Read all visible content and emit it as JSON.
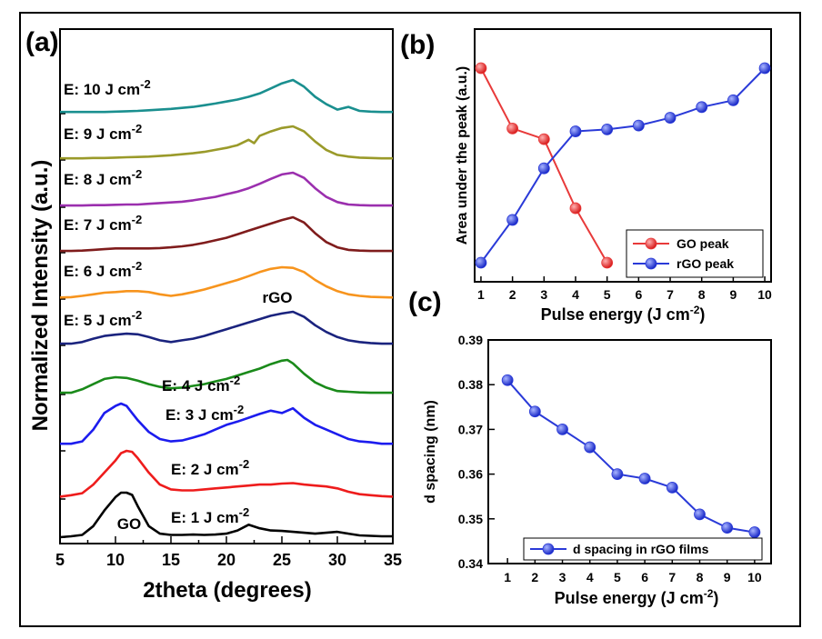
{
  "chart_data": [
    {
      "panel": "(a)",
      "type": "line",
      "xlabel": "2theta (degrees)",
      "ylabel": "Normalized Intensity (a.u.)",
      "xlim": [
        5,
        35
      ],
      "xticks": [
        "5",
        "10",
        "15",
        "20",
        "25",
        "30",
        "35"
      ],
      "annotations": [
        {
          "text": "rGO",
          "x": 26
        },
        {
          "text": "GO",
          "x": 10.5
        }
      ],
      "series": [
        {
          "name": "E: 1 J cm-2",
          "label_main": "E: 1 J cm",
          "label_sup": "-2",
          "color": "#000000",
          "x": [
            5,
            6,
            7,
            8,
            9,
            10,
            10.5,
            11,
            11.5,
            12,
            13,
            14,
            15,
            16,
            17,
            18,
            19,
            20,
            21,
            22,
            23,
            24,
            25,
            26,
            27,
            28,
            29,
            30,
            31,
            32,
            33,
            34,
            35
          ],
          "y": [
            0,
            0.02,
            0.05,
            0.25,
            0.6,
            0.9,
            1.0,
            1.0,
            0.95,
            0.7,
            0.25,
            0.08,
            0.05,
            0.05,
            0.06,
            0.05,
            0.06,
            0.08,
            0.15,
            0.28,
            0.2,
            0.15,
            0.14,
            0.12,
            0.1,
            0.08,
            0.1,
            0.12,
            0.08,
            0.04,
            0.03,
            0.02,
            0.02
          ]
        },
        {
          "name": "E: 2 J cm-2",
          "label_main": "E: 2 J cm",
          "label_sup": "-2",
          "color": "#ee1c1c",
          "x": [
            5,
            6,
            7,
            8,
            9,
            10,
            10.5,
            11,
            11.5,
            12,
            13,
            14,
            15,
            16,
            17,
            18,
            19,
            20,
            21,
            22,
            23,
            24,
            25,
            26,
            27,
            28,
            29,
            30,
            31,
            32,
            33,
            34,
            35
          ],
          "y": [
            0.05,
            0.08,
            0.12,
            0.3,
            0.55,
            0.8,
            0.95,
            1.0,
            0.98,
            0.85,
            0.55,
            0.3,
            0.2,
            0.18,
            0.18,
            0.2,
            0.22,
            0.24,
            0.26,
            0.28,
            0.3,
            0.3,
            0.32,
            0.33,
            0.3,
            0.28,
            0.26,
            0.22,
            0.15,
            0.1,
            0.08,
            0.06,
            0.05
          ]
        },
        {
          "name": "E: 3 J cm-2",
          "label_main": "E: 3 J cm",
          "label_sup": "-2",
          "color": "#1c1cee",
          "x": [
            5,
            6,
            7,
            8,
            9,
            10,
            10.5,
            11,
            11.5,
            12,
            13,
            14,
            15,
            16,
            17,
            18,
            19,
            20,
            21,
            22,
            23,
            24,
            25,
            26,
            27,
            28,
            29,
            30,
            31,
            32,
            33,
            34,
            35
          ],
          "y": [
            0.15,
            0.15,
            0.2,
            0.45,
            0.8,
            0.95,
            1.0,
            0.95,
            0.8,
            0.65,
            0.4,
            0.25,
            0.2,
            0.22,
            0.28,
            0.35,
            0.45,
            0.55,
            0.62,
            0.7,
            0.78,
            0.85,
            0.8,
            0.9,
            0.7,
            0.55,
            0.45,
            0.35,
            0.25,
            0.2,
            0.18,
            0.15,
            0.15
          ]
        },
        {
          "name": "E: 4 J cm-2",
          "label_main": "E: 4 J cm",
          "label_sup": "-2",
          "color": "#1a8a1a",
          "x": [
            5,
            6,
            7,
            8,
            9,
            10,
            11,
            12,
            13,
            14,
            15,
            16,
            17,
            18,
            19,
            20,
            21,
            22,
            23,
            24,
            25,
            25.5,
            26,
            27,
            28,
            29,
            30,
            31,
            32,
            33,
            34,
            35
          ],
          "y": [
            0.05,
            0.05,
            0.15,
            0.3,
            0.45,
            0.5,
            0.48,
            0.4,
            0.3,
            0.22,
            0.18,
            0.2,
            0.25,
            0.3,
            0.38,
            0.45,
            0.55,
            0.65,
            0.75,
            0.88,
            0.98,
            1.0,
            0.9,
            0.6,
            0.35,
            0.2,
            0.1,
            0.08,
            0.06,
            0.05,
            0.05,
            0.05
          ]
        },
        {
          "name": "E: 5 J cm-2",
          "label_main": "E: 5 J cm",
          "label_sup": "-2",
          "color": "#1a237e",
          "x": [
            5,
            6,
            7,
            8,
            9,
            10,
            11,
            12,
            13,
            14,
            15,
            16,
            17,
            18,
            19,
            20,
            21,
            22,
            23,
            24,
            25,
            26,
            27,
            28,
            29,
            30,
            31,
            32,
            33,
            34,
            35
          ],
          "y": [
            0.05,
            0.05,
            0.1,
            0.2,
            0.28,
            0.32,
            0.35,
            0.33,
            0.25,
            0.15,
            0.1,
            0.15,
            0.2,
            0.28,
            0.38,
            0.48,
            0.58,
            0.68,
            0.78,
            0.88,
            0.95,
            1.0,
            0.85,
            0.6,
            0.4,
            0.25,
            0.15,
            0.1,
            0.07,
            0.05,
            0.05
          ]
        },
        {
          "name": "E: 6 J cm-2",
          "label_main": "E: 6 J cm",
          "label_sup": "-2",
          "color": "#f7941d",
          "x": [
            5,
            6,
            7,
            8,
            9,
            10,
            11,
            12,
            13,
            14,
            15,
            16,
            17,
            18,
            19,
            20,
            21,
            22,
            23,
            24,
            25,
            26,
            27,
            28,
            29,
            30,
            31,
            32,
            33,
            34,
            35
          ],
          "y": [
            0.05,
            0.06,
            0.1,
            0.15,
            0.2,
            0.22,
            0.25,
            0.25,
            0.22,
            0.15,
            0.1,
            0.15,
            0.22,
            0.3,
            0.4,
            0.5,
            0.6,
            0.72,
            0.85,
            0.95,
            1.0,
            0.98,
            0.85,
            0.6,
            0.4,
            0.25,
            0.15,
            0.1,
            0.07,
            0.06,
            0.05
          ]
        },
        {
          "name": "E: 7 J cm-2",
          "label_main": "E: 7 J cm",
          "label_sup": "-2",
          "color": "#7f1c1c",
          "x": [
            5,
            6,
            7,
            8,
            9,
            10,
            11,
            12,
            13,
            14,
            15,
            16,
            17,
            18,
            19,
            20,
            21,
            22,
            23,
            24,
            25,
            26,
            27,
            28,
            29,
            30,
            31,
            32,
            33,
            34,
            35
          ],
          "y": [
            0.05,
            0.05,
            0.06,
            0.08,
            0.1,
            0.12,
            0.12,
            0.12,
            0.12,
            0.13,
            0.15,
            0.18,
            0.22,
            0.28,
            0.35,
            0.42,
            0.52,
            0.62,
            0.72,
            0.82,
            0.92,
            1.0,
            0.85,
            0.55,
            0.3,
            0.15,
            0.08,
            0.06,
            0.05,
            0.05,
            0.05
          ]
        },
        {
          "name": "E: 8 J cm-2",
          "label_main": "E: 8 J cm",
          "label_sup": "-2",
          "color": "#9b2fae",
          "x": [
            5,
            6,
            7,
            8,
            9,
            10,
            11,
            12,
            13,
            14,
            15,
            16,
            17,
            18,
            19,
            20,
            21,
            22,
            23,
            24,
            25,
            26,
            27,
            28,
            29,
            30,
            31,
            32,
            33,
            34,
            35
          ],
          "y": [
            0.05,
            0.05,
            0.05,
            0.06,
            0.06,
            0.07,
            0.08,
            0.08,
            0.1,
            0.12,
            0.14,
            0.16,
            0.2,
            0.25,
            0.3,
            0.38,
            0.45,
            0.55,
            0.68,
            0.82,
            0.95,
            1.0,
            0.85,
            0.55,
            0.3,
            0.15,
            0.08,
            0.06,
            0.05,
            0.05,
            0.05
          ]
        },
        {
          "name": "E: 9 J cm-2",
          "label_main": "E: 9 J cm",
          "label_sup": "-2",
          "color": "#9a9a2a",
          "x": [
            5,
            6,
            7,
            8,
            9,
            10,
            11,
            12,
            13,
            14,
            15,
            16,
            17,
            18,
            19,
            20,
            21,
            22,
            22.5,
            23,
            24,
            25,
            26,
            27,
            28,
            29,
            30,
            31,
            32,
            33,
            34,
            35
          ],
          "y": [
            0.05,
            0.05,
            0.05,
            0.06,
            0.06,
            0.07,
            0.08,
            0.09,
            0.1,
            0.12,
            0.14,
            0.17,
            0.2,
            0.24,
            0.3,
            0.36,
            0.44,
            0.6,
            0.5,
            0.72,
            0.85,
            0.95,
            1.0,
            0.85,
            0.55,
            0.3,
            0.15,
            0.1,
            0.07,
            0.06,
            0.05,
            0.05
          ]
        },
        {
          "name": "E: 10 J cm-2",
          "label_main": "E: 10 J cm",
          "label_sup": "-2",
          "color": "#1a8f8f",
          "x": [
            5,
            6,
            7,
            8,
            9,
            10,
            11,
            12,
            13,
            14,
            15,
            16,
            17,
            18,
            19,
            20,
            21,
            22,
            23,
            24,
            25,
            26,
            27,
            28,
            29,
            30,
            31,
            32,
            33,
            34,
            35
          ],
          "y": [
            0.05,
            0.05,
            0.05,
            0.05,
            0.05,
            0.06,
            0.07,
            0.08,
            0.1,
            0.12,
            0.14,
            0.17,
            0.2,
            0.25,
            0.3,
            0.36,
            0.42,
            0.5,
            0.6,
            0.75,
            0.9,
            1.0,
            0.8,
            0.5,
            0.28,
            0.12,
            0.2,
            0.08,
            0.06,
            0.05,
            0.05
          ]
        }
      ]
    },
    {
      "panel": "(b)",
      "type": "line",
      "xlabel_main": "Pulse energy (J cm",
      "xlabel_sup": "-2",
      "xlabel_end": ")",
      "ylabel": "Area under the peak (a.u.)",
      "xlim": [
        0.8,
        10.2
      ],
      "ylim": [
        0,
        1
      ],
      "categories": [
        "1",
        "2",
        "3",
        "4",
        "5",
        "6",
        "7",
        "8",
        "9",
        "10"
      ],
      "legend_position": "bottom-right",
      "series": [
        {
          "name": "GO peak",
          "color": "#e83a3a",
          "x": [
            1,
            2,
            3,
            4,
            5
          ],
          "y": [
            1.0,
            0.69,
            0.635,
            0.28,
            0.0
          ]
        },
        {
          "name": "rGO peak",
          "color": "#2a3ad8",
          "x": [
            1,
            2,
            3,
            4,
            5,
            6,
            7,
            8,
            9,
            10
          ],
          "y": [
            0.0,
            0.22,
            0.485,
            0.675,
            0.685,
            0.705,
            0.745,
            0.8,
            0.835,
            1.0
          ]
        }
      ]
    },
    {
      "panel": "(c)",
      "type": "line",
      "xlabel_main": "Pulse energy (J cm",
      "xlabel_sup": "-2",
      "xlabel_end": ")",
      "ylabel": "d spacing (nm)",
      "xlim": [
        0.3,
        10.6
      ],
      "ylim": [
        0.34,
        0.39
      ],
      "categories": [
        "1",
        "2",
        "3",
        "4",
        "5",
        "6",
        "7",
        "8",
        "9",
        "10"
      ],
      "yticks": [
        "0.34",
        "0.35",
        "0.36",
        "0.37",
        "0.38",
        "0.39"
      ],
      "legend_position": "bottom-right",
      "series": [
        {
          "name": "d spacing in rGO films",
          "color": "#2a3ad8",
          "x": [
            1,
            2,
            3,
            4,
            5,
            6,
            7,
            8,
            9,
            10
          ],
          "y": [
            0.381,
            0.374,
            0.37,
            0.366,
            0.36,
            0.359,
            0.357,
            0.351,
            0.348,
            0.347
          ]
        }
      ]
    }
  ]
}
